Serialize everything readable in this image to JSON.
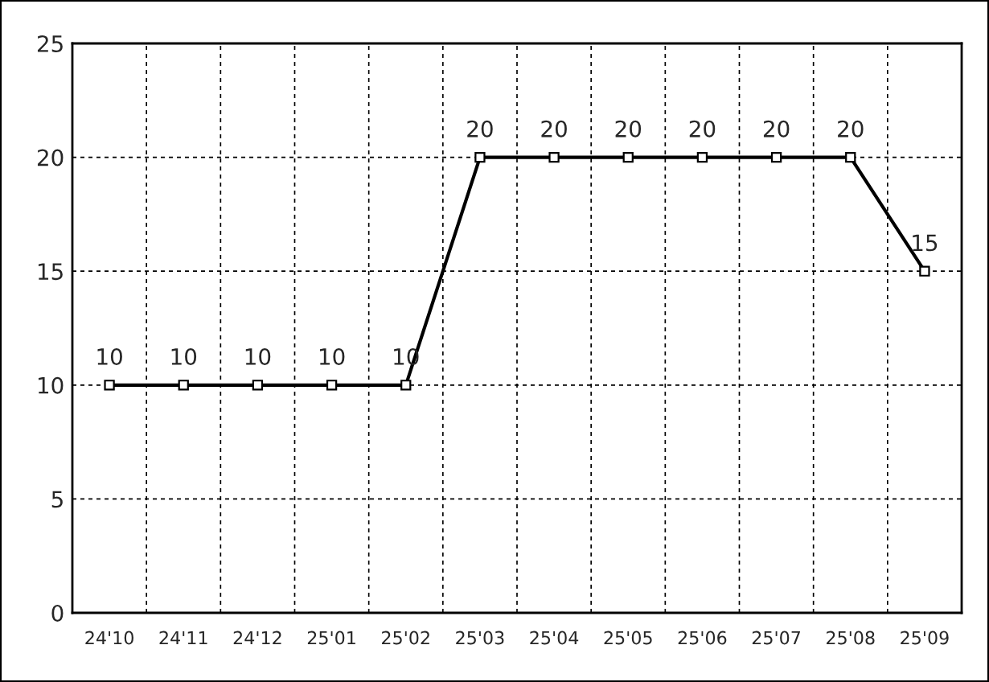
{
  "chart_data": {
    "type": "line",
    "categories": [
      "24'10",
      "24'11",
      "24'12",
      "25'01",
      "25'02",
      "25'03",
      "25'04",
      "25'05",
      "25'06",
      "25'07",
      "25'08",
      "25'09"
    ],
    "series": [
      {
        "color": "#000000",
        "values": [
          10,
          10,
          10,
          10,
          10,
          20,
          20,
          20,
          20,
          20,
          20,
          15
        ]
      }
    ],
    "ylim": [
      0,
      25
    ],
    "yticks": [
      0,
      5,
      10,
      15,
      20,
      25
    ],
    "grid": true,
    "marker": "square",
    "line_style": "solid",
    "data_labels": true
  }
}
